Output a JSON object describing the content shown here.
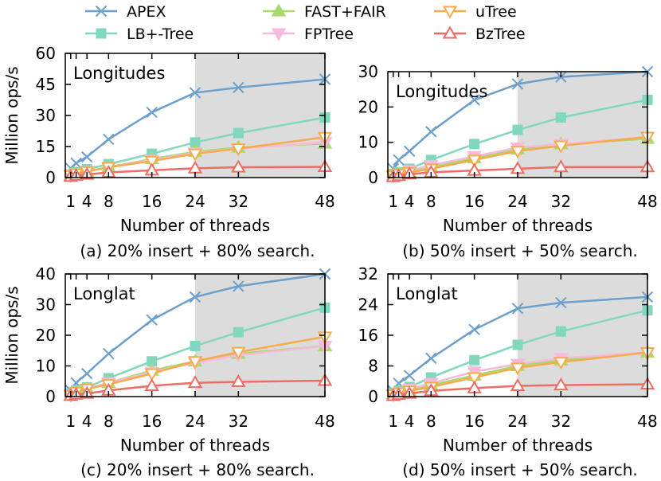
{
  "chart_data": {
    "type": "line",
    "x": [
      1,
      2,
      4,
      8,
      16,
      24,
      32,
      48
    ],
    "x_tick_labels": [
      "1",
      "4",
      "8",
      "16",
      "24",
      "32",
      "48"
    ],
    "xlabel": "Number of threads",
    "ylabel": "Million ops/s",
    "shaded_x_range": [
      24,
      48
    ],
    "legend": [
      {
        "name": "APEX",
        "color": "#6c9fcc",
        "marker": "x"
      },
      {
        "name": "LB+-Tree",
        "color": "#81d8be",
        "marker": "square"
      },
      {
        "name": "FAST+FAIR",
        "color": "#a8da6e",
        "marker": "triangle-up"
      },
      {
        "name": "FPTree",
        "color": "#f7b9dc",
        "marker": "triangle-down"
      },
      {
        "name": "uTree",
        "color": "#f8ab4c",
        "marker": "triangle-down-open"
      },
      {
        "name": "BzTree",
        "color": "#ee6c62",
        "marker": "triangle-up-open"
      }
    ],
    "panels": [
      {
        "label": "Longitudes",
        "caption": "(a) 20% insert + 80% search.",
        "ylim": [
          0,
          60
        ],
        "yticks": [
          0,
          15,
          30,
          45,
          60
        ],
        "series": [
          {
            "name": "APEX",
            "values": [
              4.5,
              7,
              10,
              18.5,
              31.5,
              41,
              43.5,
              47.5
            ]
          },
          {
            "name": "LB+-Tree",
            "values": [
              1.5,
              2.5,
              4,
              6.5,
              11.5,
              17,
              21.5,
              29
            ]
          },
          {
            "name": "FAST+FAIR",
            "values": [
              1,
              2,
              3,
              5,
              9,
              12.5,
              14.5,
              16.5
            ]
          },
          {
            "name": "FPTree",
            "values": [
              1,
              2,
              3,
              5,
              8.5,
              12,
              14,
              17
            ]
          },
          {
            "name": "uTree",
            "values": [
              1,
              2,
              3,
              5,
              8,
              11.5,
              14,
              19.5
            ]
          },
          {
            "name": "BzTree",
            "values": [
              0.5,
              1,
              1.5,
              2.5,
              3.5,
              4.5,
              5,
              5.2
            ]
          }
        ]
      },
      {
        "label": "Longitudes",
        "caption": "(b) 50% insert + 50% search.",
        "ylim": [
          0,
          30
        ],
        "yticks": [
          0,
          10,
          20,
          30
        ],
        "series": [
          {
            "name": "APEX",
            "values": [
              2.5,
              5,
              7.5,
              13,
              22,
              26.5,
              28.5,
              30
            ]
          },
          {
            "name": "LB+-Tree",
            "values": [
              1,
              1.5,
              2.5,
              5,
              9.5,
              13.5,
              17,
              22
            ]
          },
          {
            "name": "FAST+FAIR",
            "values": [
              0.5,
              1,
              1.5,
              3,
              5.5,
              8,
              9.5,
              11
            ]
          },
          {
            "name": "FPTree",
            "values": [
              0.5,
              1,
              2,
              3.5,
              6,
              8.5,
              9.5,
              11.5
            ]
          },
          {
            "name": "uTree",
            "values": [
              0.5,
              1,
              1.5,
              2.5,
              5,
              7.5,
              9,
              11.5
            ]
          },
          {
            "name": "BzTree",
            "values": [
              0.2,
              0.5,
              1,
              1.5,
              2,
              2.5,
              3,
              3
            ]
          }
        ]
      },
      {
        "label": "Longlat",
        "caption": "(c) 20% insert + 80% search.",
        "ylim": [
          0,
          40
        ],
        "yticks": [
          0,
          10,
          20,
          30,
          40
        ],
        "series": [
          {
            "name": "APEX",
            "values": [
              2,
              4.5,
              7.5,
              14,
              25,
              32.5,
              36,
              40
            ]
          },
          {
            "name": "LB+-Tree",
            "values": [
              1,
              2,
              3,
              6,
              11.5,
              16.5,
              21,
              29
            ]
          },
          {
            "name": "FAST+FAIR",
            "values": [
              0.5,
              1.5,
              2.5,
              4.5,
              8.5,
              11.5,
              14,
              16.5
            ]
          },
          {
            "name": "FPTree",
            "values": [
              0.5,
              1.5,
              2.5,
              4.5,
              8,
              11,
              13.5,
              16.5
            ]
          },
          {
            "name": "uTree",
            "values": [
              0.5,
              1.5,
              2.5,
              4,
              7.5,
              11.5,
              14.5,
              19.5
            ]
          },
          {
            "name": "BzTree",
            "values": [
              0.3,
              0.7,
              1,
              2,
              3.5,
              4.5,
              4.8,
              5.2
            ]
          }
        ]
      },
      {
        "label": "Longlat",
        "caption": "(d) 50% insert + 50% search.",
        "ylim": [
          0,
          32
        ],
        "yticks": [
          0,
          8,
          16,
          24,
          32
        ],
        "series": [
          {
            "name": "APEX",
            "values": [
              1.5,
              3.5,
              5.5,
              10,
              17.5,
              23,
              24.5,
              26
            ]
          },
          {
            "name": "LB+-Tree",
            "values": [
              0.8,
              1.5,
              2.5,
              5,
              9.5,
              13.5,
              17,
              22.5
            ]
          },
          {
            "name": "FAST+FAIR",
            "values": [
              0.5,
              1,
              1.5,
              3,
              5.5,
              8,
              9.5,
              11.5
            ]
          },
          {
            "name": "FPTree",
            "values": [
              0.5,
              1,
              2,
              3.5,
              6.5,
              8.5,
              10,
              11.5
            ]
          },
          {
            "name": "uTree",
            "values": [
              0.5,
              1,
              1.5,
              2.5,
              5,
              7.5,
              9,
              11.5
            ]
          },
          {
            "name": "BzTree",
            "values": [
              0.2,
              0.5,
              0.8,
              1.5,
              2.2,
              2.8,
              3,
              3.2
            ]
          }
        ]
      }
    ]
  }
}
